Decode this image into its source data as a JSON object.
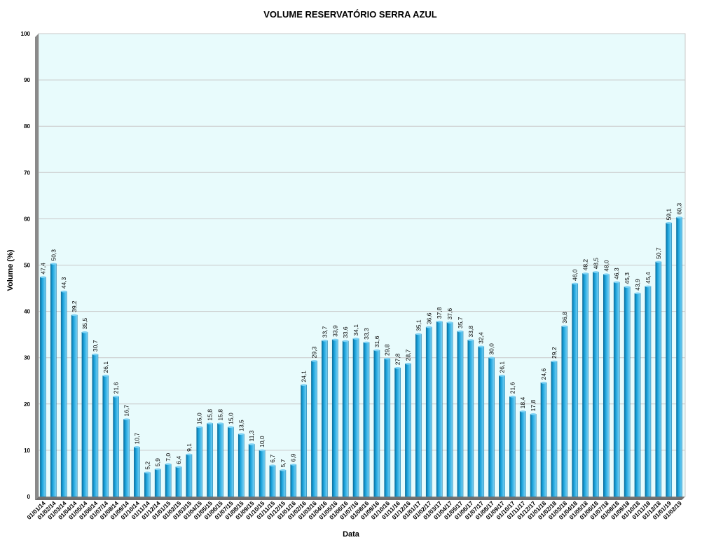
{
  "chart_data": {
    "type": "bar",
    "title": "VOLUME RESERVATÓRIO SERRA AZUL",
    "xlabel": "Data",
    "ylabel": "Volume (%)",
    "ylim": [
      0,
      100
    ],
    "yticks": [
      "0",
      "10",
      "20",
      "30",
      "40",
      "50",
      "60",
      "70",
      "80",
      "90",
      "100"
    ],
    "grid": true,
    "legend": "none",
    "colors": {
      "bar": "#1aa3dc",
      "bar_dark": "#0b6f9e",
      "bar_light": "#7fd3f5",
      "plot_bg": "#e8fbfc",
      "grid": "#c8c8c8",
      "axis_wall": "#8a8a8a"
    },
    "categories": [
      "01/01/14",
      "01/02/14",
      "01/03/14",
      "01/04/14",
      "01/05/14",
      "01/06/14",
      "01/07/14",
      "01/08/14",
      "01/09/14",
      "01/10/14",
      "01/11/14",
      "01/12/14",
      "01/01/15",
      "01/02/15",
      "01/03/15",
      "01/04/15",
      "01/05/15",
      "01/06/15",
      "01/07/15",
      "01/08/15",
      "01/09/15",
      "01/10/15",
      "01/11/15",
      "01/12/15",
      "01/01/16",
      "01/02/16",
      "01/03/16",
      "01/04/16",
      "01/05/16",
      "01/06/16",
      "01/07/16",
      "01/08/16",
      "01/09/16",
      "01/10/16",
      "01/11/16",
      "01/12/16",
      "01/01/17",
      "01/02/17",
      "01/03/17",
      "01/04/17",
      "01/05/17",
      "01/06/17",
      "01/07/17",
      "01/08/17",
      "01/09/17",
      "01/10/17",
      "01/11/17",
      "01/12/17",
      "01/01/18",
      "01/02/18",
      "01/03/18",
      "01/04/18",
      "01/05/18",
      "01/06/18",
      "01/07/18",
      "01/08/18",
      "01/09/18",
      "01/10/18",
      "01/11/18",
      "01/12/18",
      "01/01/19",
      "01/02/19"
    ],
    "values": [
      47.4,
      50.3,
      44.3,
      39.2,
      35.5,
      30.7,
      26.1,
      21.6,
      16.7,
      10.7,
      5.2,
      5.9,
      7.0,
      6.4,
      9.1,
      15.0,
      15.8,
      15.8,
      15.0,
      13.5,
      11.3,
      10.0,
      6.7,
      5.7,
      6.9,
      24.1,
      29.3,
      33.7,
      33.9,
      33.6,
      34.1,
      33.3,
      31.6,
      29.8,
      27.8,
      28.7,
      35.1,
      36.6,
      37.8,
      37.6,
      35.7,
      33.8,
      32.4,
      30.0,
      26.1,
      21.6,
      18.4,
      17.8,
      24.6,
      29.2,
      36.8,
      46.0,
      48.2,
      48.5,
      48.0,
      46.3,
      45.3,
      43.9,
      45.4,
      50.7,
      59.1,
      60.3
    ],
    "data_labels": [
      "47,4",
      "50,3",
      "44,3",
      "39,2",
      "35,5",
      "30,7",
      "26,1",
      "21,6",
      "16,7",
      "10,7",
      "5,2",
      "5,9",
      "7,0",
      "6,4",
      "9,1",
      "15,0",
      "15,8",
      "15,8",
      "15,0",
      "13,5",
      "11,3",
      "10,0",
      "6,7",
      "5,7",
      "6,9",
      "24,1",
      "29,3",
      "33,7",
      "33,9",
      "33,6",
      "34,1",
      "33,3",
      "31,6",
      "29,8",
      "27,8",
      "28,7",
      "35,1",
      "36,6",
      "37,8",
      "37,6",
      "35,7",
      "33,8",
      "32,4",
      "30,0",
      "26,1",
      "21,6",
      "18,4",
      "17,8",
      "24,6",
      "29,2",
      "36,8",
      "46,0",
      "48,2",
      "48,5",
      "48,0",
      "46,3",
      "45,3",
      "43,9",
      "45,4",
      "50,7",
      "59,1",
      "60,3"
    ]
  }
}
